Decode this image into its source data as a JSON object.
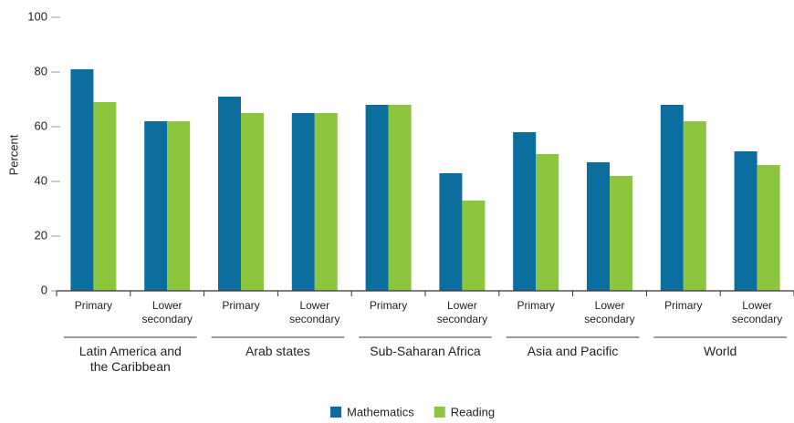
{
  "chart_data": {
    "type": "bar",
    "ylabel": "Percent",
    "categories": [
      "Primary",
      "Lower secondary",
      "Primary",
      "Lower secondary",
      "Primary",
      "Lower secondary",
      "Primary",
      "Lower secondary",
      "Primary",
      "Lower secondary"
    ],
    "groups": [
      "Latin America and the Caribbean",
      "Arab states",
      "Sub-Saharan Africa",
      "Asia and Pacific",
      "World"
    ],
    "series": [
      {
        "name": "Mathematics",
        "color": "#0b6e9f",
        "values": [
          81,
          62,
          71,
          65,
          68,
          43,
          58,
          47,
          68,
          51
        ]
      },
      {
        "name": "Reading",
        "color": "#8cc63f",
        "values": [
          69,
          62,
          65,
          65,
          68,
          33,
          50,
          42,
          62,
          46
        ]
      }
    ],
    "ylim": [
      0,
      100
    ],
    "yticks": [
      0,
      20,
      40,
      60,
      80,
      100
    ],
    "legend": "bottom"
  }
}
